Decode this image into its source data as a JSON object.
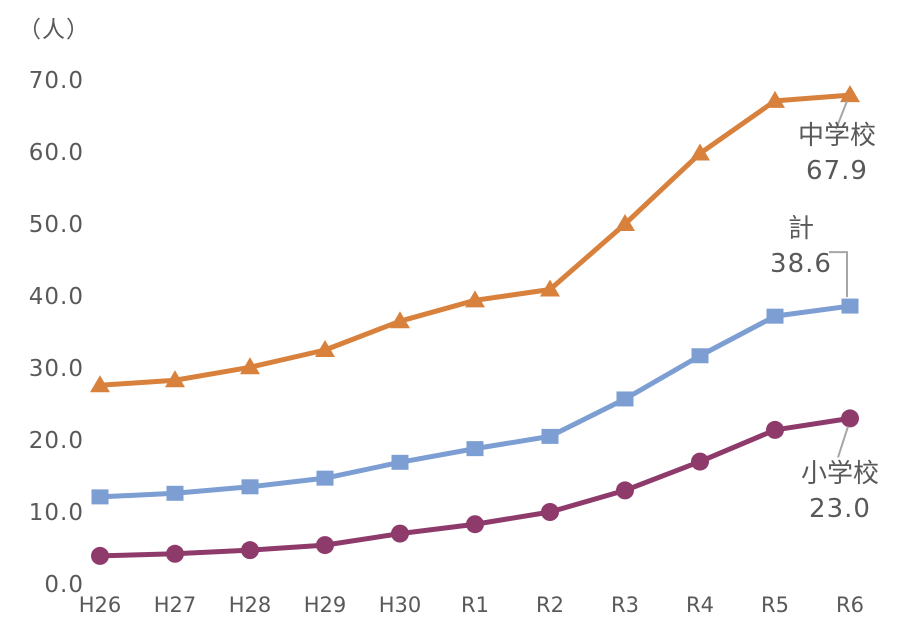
{
  "chart": {
    "y_axis_unit": "（人）",
    "colors": {
      "text": "#595959",
      "leader": "#A6A6A6",
      "background": "#FFFFFF",
      "junior_high": "#D8813C",
      "total": "#7C9ED2",
      "elementary": "#8E3A6B"
    }
  },
  "chart_data": {
    "type": "line",
    "title": "",
    "xlabel": "",
    "ylabel": "（人）",
    "ylim": [
      0,
      70
    ],
    "grid": false,
    "legend_position": "end-of-line-labels",
    "categories": [
      "H26",
      "H27",
      "H28",
      "H29",
      "H30",
      "R1",
      "R2",
      "R3",
      "R4",
      "R5",
      "R6"
    ],
    "y_ticks": [
      "0.0",
      "10.0",
      "20.0",
      "30.0",
      "40.0",
      "50.0",
      "60.0",
      "70.0"
    ],
    "series": [
      {
        "name": "中学校",
        "marker": "triangle",
        "color": "#D8813C",
        "values": [
          27.6,
          28.3,
          30.1,
          32.5,
          36.5,
          39.4,
          40.9,
          50.0,
          59.8,
          67.1,
          67.9
        ],
        "end_label": "67.9"
      },
      {
        "name": "計",
        "marker": "square",
        "color": "#7C9ED2",
        "values": [
          12.1,
          12.6,
          13.5,
          14.7,
          16.9,
          18.8,
          20.5,
          25.7,
          31.7,
          37.2,
          38.6
        ],
        "end_label": "38.6"
      },
      {
        "name": "小学校",
        "marker": "circle",
        "color": "#8E3A6B",
        "values": [
          3.9,
          4.2,
          4.7,
          5.4,
          7.0,
          8.3,
          10.0,
          13.0,
          17.0,
          21.4,
          23.0
        ],
        "end_label": "23.0"
      }
    ]
  }
}
